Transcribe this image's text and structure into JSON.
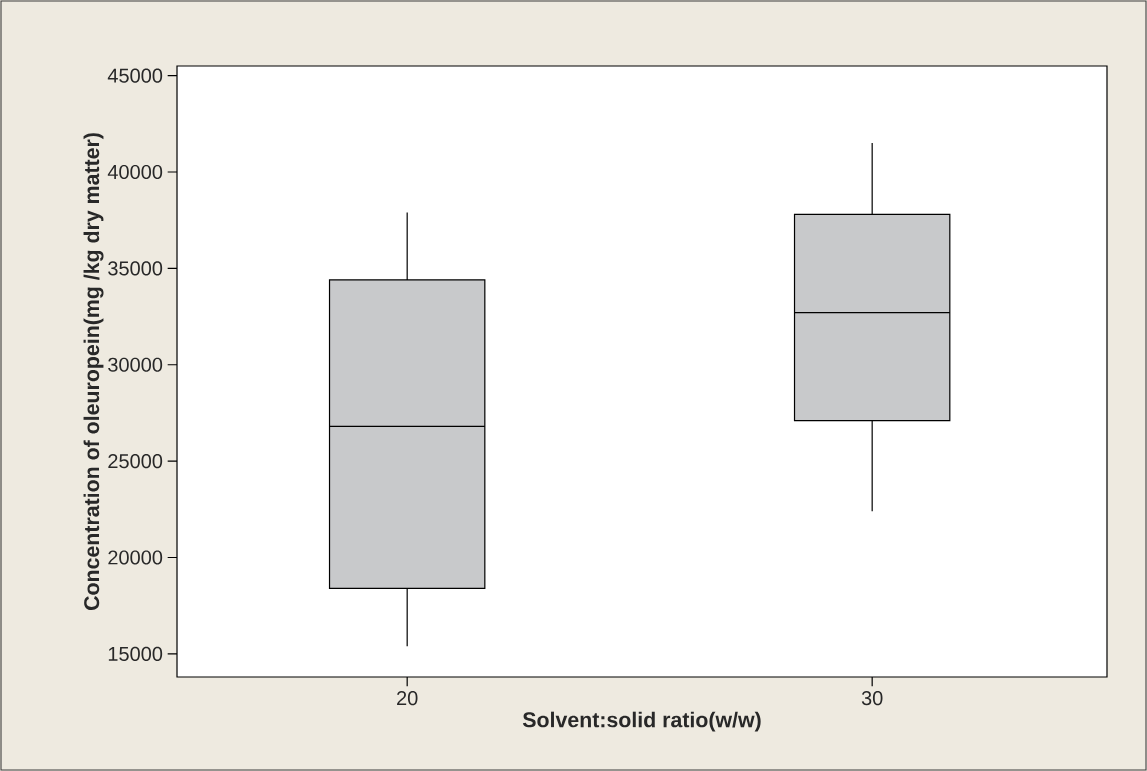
{
  "chart_data": {
    "type": "box",
    "xlabel": "Solvent:solid ratio(w/w)",
    "ylabel": "Concentration of oleuropein(mg /kg dry matter)",
    "categories": [
      "20",
      "30"
    ],
    "boxes": [
      {
        "low": 15400,
        "q1": 18400,
        "median": 26800,
        "q3": 34400,
        "high": 37900
      },
      {
        "low": 22400,
        "q1": 27100,
        "median": 32700,
        "q3": 37800,
        "high": 41500
      }
    ],
    "colors": [
      "#c8c9cb",
      "#c8c9cb"
    ],
    "ylim": [
      13800,
      45500
    ],
    "yticks": [
      15000,
      20000,
      25000,
      30000,
      35000,
      40000,
      45000
    ]
  }
}
